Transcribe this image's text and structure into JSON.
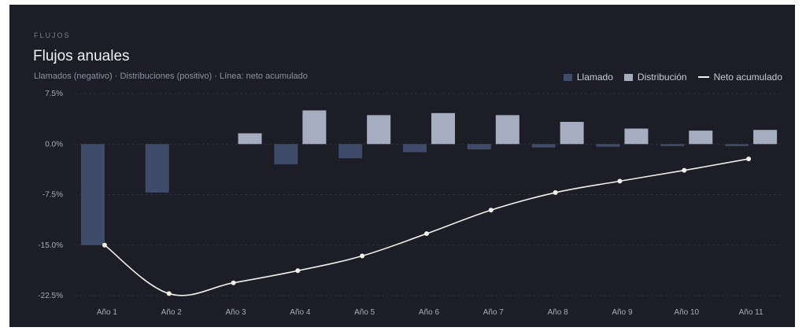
{
  "header": {
    "eyebrow": "FLUJOS",
    "title": "Flujos anuales",
    "subtitle": "Llamados (negativo) · Distribuciones (positivo) · Línea: neto acumulado"
  },
  "colors": {
    "background": "#1c1d26",
    "called": "#3e4b69",
    "distribution": "#a7adc1",
    "line": "#f2f0e8",
    "grid": "#2e303b"
  },
  "chart_data": {
    "type": "bar",
    "categories": [
      "Año 1",
      "Año 2",
      "Año 3",
      "Año 4",
      "Año 5",
      "Año 6",
      "Año 7",
      "Año 8",
      "Año 9",
      "Año 10",
      "Año 11"
    ],
    "series": [
      {
        "name": "Llamado",
        "type": "bar",
        "values": [
          -15.0,
          -7.2,
          0,
          -3.0,
          -2.1,
          -1.2,
          -0.8,
          -0.5,
          -0.4,
          -0.3,
          -0.3
        ]
      },
      {
        "name": "Distribución",
        "type": "bar",
        "values": [
          0,
          0,
          1.6,
          5.0,
          4.3,
          4.6,
          4.3,
          3.3,
          2.3,
          2.0,
          2.1
        ]
      },
      {
        "name": "Neto acumulado",
        "type": "line",
        "values": [
          -15.0,
          -22.2,
          -20.6,
          -18.8,
          -16.6,
          -13.3,
          -9.8,
          -7.2,
          -5.5,
          -3.9,
          -2.2
        ]
      }
    ],
    "yticks": [
      "7.5%",
      "0.0%",
      "-7.5%",
      "-15.0%",
      "-22.5%"
    ],
    "ytick_values": [
      7.5,
      0,
      -7.5,
      -15,
      -22.5
    ],
    "ylim": [
      -22.5,
      7.5
    ],
    "grid": true,
    "legend_position": "top-right"
  }
}
